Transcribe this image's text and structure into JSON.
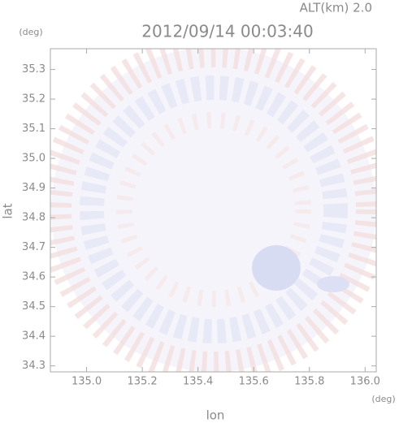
{
  "chart_data": {
    "type": "field",
    "title": "2012/09/14 00:03:40",
    "subtitle": "ALT(km) 2.0",
    "x_label": "lon",
    "y_label": "lat",
    "x_unit": "(deg)",
    "y_unit": "(deg)",
    "xlim": [
      134.87,
      136.04
    ],
    "ylim": [
      34.28,
      35.37
    ],
    "xticks": [
      {
        "value": 135,
        "label": "135.0"
      },
      135.2,
      135.4,
      135.6,
      135.8,
      {
        "value": 136,
        "label": "136.0"
      }
    ],
    "yticks": [
      34.3,
      34.4,
      34.5,
      34.6,
      34.7,
      34.8,
      34.9,
      {
        "value": 35,
        "label": "35.0"
      },
      35.1,
      35.2,
      35.3
    ]
  }
}
